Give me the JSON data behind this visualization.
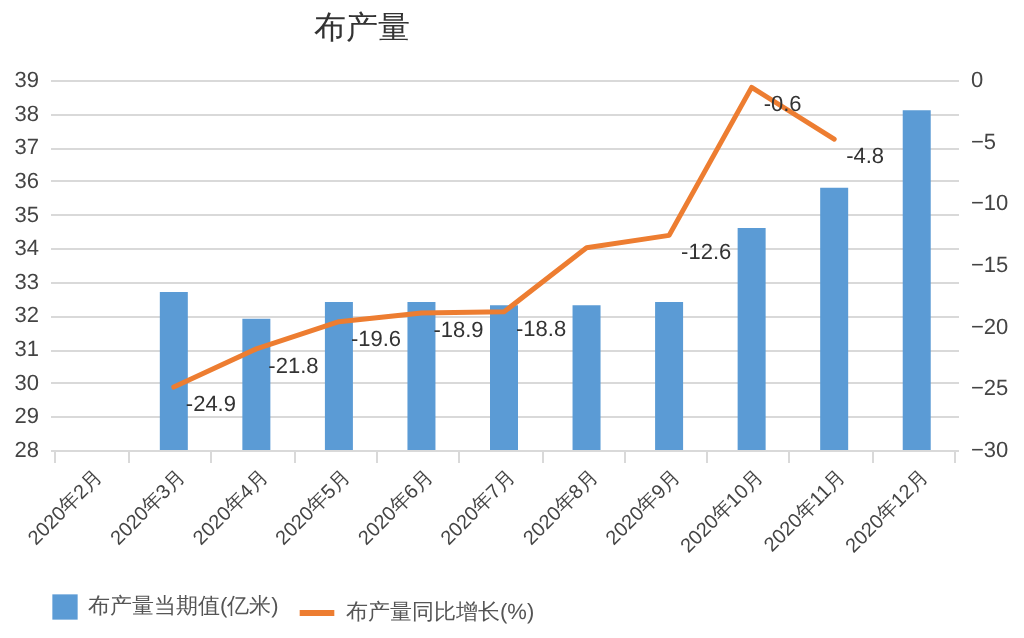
{
  "chart_data": {
    "type": "bar",
    "title": "布产量",
    "categories": [
      "2020年2月",
      "2020年3月",
      "2020年4月",
      "2020年5月",
      "2020年6月",
      "2020年7月",
      "2020年8月",
      "2020年9月",
      "2020年10月",
      "2020年11月",
      "2020年12月"
    ],
    "series": [
      {
        "name": "布产量当期值(亿米)",
        "type": "bar",
        "color": "#5b9bd5",
        "values": [
          null,
          32.7,
          31.9,
          32.4,
          32.4,
          32.3,
          32.3,
          32.4,
          34.6,
          35.8,
          38.1
        ]
      },
      {
        "name": "布产量同比增长(%)",
        "type": "line",
        "axis": "y2",
        "color": "#ed7d31",
        "values": [
          null,
          -24.9,
          -21.8,
          -19.6,
          -18.9,
          -18.8,
          -13.6,
          -12.6,
          -0.6,
          -4.8,
          null
        ],
        "value_labels": [
          null,
          "-24.9",
          "-21.8",
          "-19.6",
          "-18.9",
          "-18.8",
          null,
          "-12.6",
          "-0.6",
          "-4.8",
          null
        ]
      }
    ],
    "ylim": [
      28,
      39
    ],
    "yticks": [
      28,
      29,
      30,
      31,
      32,
      33,
      34,
      35,
      36,
      37,
      38,
      39
    ],
    "y2lim": [
      -30,
      0
    ],
    "y2ticks": [
      -30,
      -25,
      -20,
      -15,
      -10,
      -5,
      0
    ],
    "grid": "y",
    "legend": "bottom"
  }
}
